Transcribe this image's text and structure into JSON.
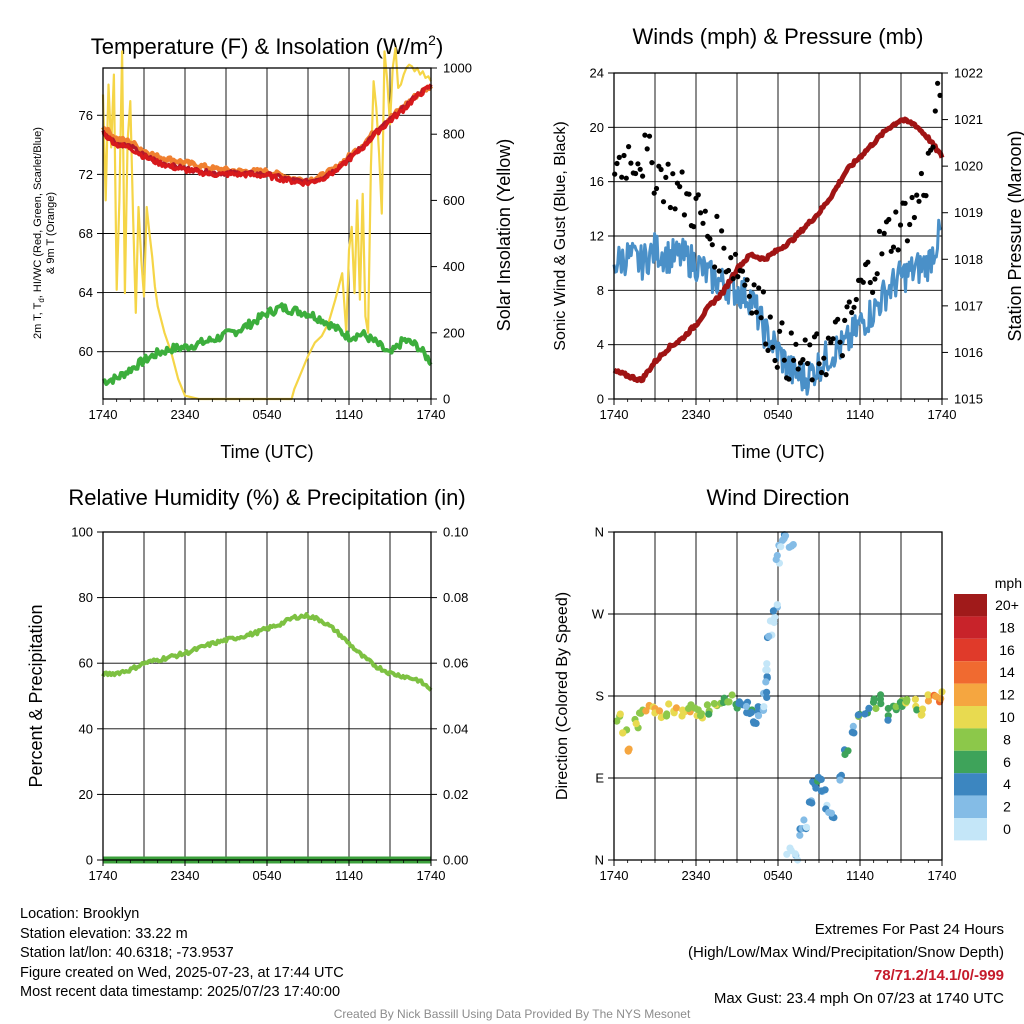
{
  "panels": {
    "temperature": {
      "title": "Temperature (F) & Insolation (W/m",
      "title_sup": "2",
      "title_end": ")",
      "ylabel_left_1": "2m T, T",
      "ylabel_left_sub": "d",
      "ylabel_left_2": ", HI/WC (Red, Green, Scarlet/Blue)",
      "ylabel_left_3": "& 9m T (Orange)",
      "ylabel_right": "Solar Insolation (Yellow)",
      "xlabel": "Time (UTC)"
    },
    "winds": {
      "title": "Winds (mph) & Pressure (mb)",
      "ylabel_left": "Sonic Wind & Gust (Blue, Black)",
      "ylabel_right": "Station Pressure (Maroon)",
      "xlabel": "Time (UTC)"
    },
    "humidity": {
      "title": "Relative Humidity (%) & Precipitation (in)",
      "ylabel_left": "Percent & Precipitation"
    },
    "direction": {
      "title": "Wind Direction",
      "ylabel_left": "Direction (Colored By Speed)",
      "colorbar_unit": "mph",
      "colorbar_labels": [
        "20+",
        "18",
        "16",
        "14",
        "12",
        "10",
        "8",
        "6",
        "4",
        "2",
        "0"
      ]
    }
  },
  "info": {
    "location": "Location: Brooklyn",
    "elevation": "Station elevation: 33.22 m",
    "latlon": "Station lat/lon: 40.6318; -73.9537",
    "created": "Figure created on Wed, 2025-07-23, at 17:44 UTC",
    "recent": "Most recent data timestamp: 2025/07/23 17:40:00",
    "extremes_title": "Extremes For Past 24 Hours",
    "extremes_sub": "(High/Low/Max Wind/Precipitation/Snow Depth)",
    "extremes_values": "78/71.2/14.1/0/-999",
    "max_gust": "Max Gust: 23.4 mph On 07/23 at 1740 UTC",
    "credit": "Created By Nick Bassill Using Data Provided By The NYS Mesonet"
  },
  "colors": {
    "temperature": "#d7191c",
    "dewpoint": "#3cae3c",
    "heat_index": "#b2182b",
    "temp_9m": "#f08030",
    "insolation": "#f5d547",
    "wind": "#4a90c8",
    "gust": "#000000",
    "pressure": "#a01414",
    "humidity": "#7dc142",
    "precip": "#3ca03c",
    "colorbar": [
      "#a01a1a",
      "#c8232a",
      "#e03a2a",
      "#f06a30",
      "#f5a640",
      "#e8da50",
      "#8cc84a",
      "#3ea35a",
      "#3c86c0",
      "#84bce6",
      "#c4e6f8"
    ]
  },
  "chart_data": [
    {
      "type": "line",
      "title": "Temperature (F) & Insolation (W/m2)",
      "xlabel": "Time (UTC)",
      "ylabel": "2m T, Td, HI/WC (Red, Green, Scarlet/Blue) & 9m T (Orange)",
      "y2label": "Solar Insolation (Yellow)",
      "x_ticks": [
        "1740",
        "2340",
        "0540",
        "1140",
        "1740"
      ],
      "x_hours": [
        0,
        6,
        12,
        18,
        24
      ],
      "ylim": [
        56.8,
        79.2
      ],
      "y_ticks": [
        60,
        64,
        68,
        72,
        76
      ],
      "y2lim": [
        0,
        1000
      ],
      "y2_ticks": [
        0,
        200,
        400,
        600,
        800,
        1000
      ],
      "series": [
        {
          "role": "temp_9m",
          "hours": [
            0,
            1,
            2,
            3,
            4,
            5,
            6,
            8,
            10,
            12,
            14,
            15,
            16,
            17,
            18,
            19,
            20,
            21,
            22,
            23,
            24
          ],
          "values": [
            75.2,
            74.4,
            74.2,
            73.6,
            73.2,
            73.0,
            72.8,
            72.4,
            72.2,
            72.2,
            71.7,
            71.6,
            71.9,
            72.4,
            73.2,
            74.0,
            75.0,
            75.8,
            76.6,
            77.4,
            78.0
          ]
        },
        {
          "role": "temperature",
          "hours": [
            0,
            1,
            2,
            3,
            4,
            5,
            6,
            8,
            10,
            12,
            14,
            15,
            16,
            17,
            18,
            19,
            20,
            21,
            22,
            23,
            24
          ],
          "values": [
            74.8,
            74.0,
            73.8,
            73.2,
            72.8,
            72.5,
            72.3,
            72.0,
            72.0,
            71.9,
            71.5,
            71.4,
            71.7,
            72.2,
            73.0,
            73.8,
            74.8,
            75.6,
            76.4,
            77.3,
            78.0
          ]
        },
        {
          "role": "heat_index",
          "hours": [
            0,
            1,
            2,
            3,
            4,
            5,
            6,
            8,
            10,
            12,
            14,
            15,
            16,
            17,
            18,
            19,
            20,
            21,
            22,
            23,
            24
          ],
          "values": [
            74.9,
            74.1,
            73.9,
            73.3,
            72.9,
            72.6,
            72.4,
            72.1,
            72.1,
            72.0,
            71.6,
            71.5,
            71.8,
            72.3,
            73.1,
            73.9,
            74.9,
            75.7,
            76.5,
            77.4,
            78.0
          ]
        },
        {
          "role": "dewpoint",
          "hours": [
            0,
            1,
            2,
            3,
            4,
            5,
            6,
            8,
            10,
            11,
            12,
            13,
            14,
            15,
            16,
            17,
            18,
            19,
            20,
            21,
            22,
            23,
            24
          ],
          "values": [
            58.0,
            58.2,
            58.8,
            59.4,
            59.9,
            60.2,
            60.3,
            60.8,
            61.5,
            62.0,
            62.6,
            63.0,
            62.8,
            62.6,
            62.2,
            61.6,
            61.0,
            61.2,
            60.6,
            59.8,
            60.8,
            60.4,
            59.3
          ]
        },
        {
          "role": "insolation",
          "hours": [
            0,
            0.2,
            0.4,
            0.6,
            0.8,
            1.0,
            1.2,
            1.4,
            1.6,
            1.8,
            2.0,
            2.2,
            2.4,
            2.6,
            2.8,
            3.0,
            3.2,
            3.4,
            3.6,
            3.8,
            4.0,
            4.5,
            5.0,
            5.5,
            6.0,
            7.0,
            9.0,
            11.0,
            13.0,
            13.8,
            14.0,
            14.5,
            15.0,
            15.5,
            16.0,
            16.5,
            17.0,
            17.5,
            17.8,
            18.0,
            18.2,
            18.4,
            18.6,
            18.8,
            19.0,
            19.2,
            19.4,
            19.6,
            19.8,
            20.0,
            20.2,
            20.4,
            20.6,
            20.8,
            21.0,
            21.2,
            21.4,
            21.6,
            21.8,
            22.0,
            22.2,
            22.4,
            22.6,
            22.8,
            23.0,
            23.2,
            23.4,
            23.6,
            23.8,
            24.0
          ],
          "values": [
            920,
            600,
            950,
            760,
            980,
            330,
            600,
            1050,
            320,
            780,
            900,
            550,
            260,
            580,
            420,
            310,
            580,
            500,
            430,
            340,
            280,
            200,
            140,
            60,
            10,
            0,
            0,
            0,
            0,
            0,
            30,
            80,
            130,
            170,
            190,
            230,
            300,
            380,
            200,
            450,
            520,
            320,
            600,
            300,
            620,
            250,
            200,
            700,
            960,
            880,
            740,
            560,
            1050,
            960,
            830,
            1000,
            1060,
            940,
            950,
            980,
            1000,
            1010,
            1005,
            990,
            1000,
            980,
            990,
            970,
            975,
            960
          ]
        }
      ]
    },
    {
      "type": "line",
      "title": "Winds (mph) & Pressure (mb)",
      "xlabel": "Time (UTC)",
      "ylabel": "Sonic Wind & Gust (Blue, Black)",
      "y2label": "Station Pressure (Maroon)",
      "x_ticks": [
        "1740",
        "2340",
        "0540",
        "1140",
        "1740"
      ],
      "x_hours": [
        0,
        6,
        12,
        18,
        24
      ],
      "ylim": [
        0,
        24
      ],
      "y_ticks": [
        0,
        4,
        8,
        12,
        16,
        20,
        24
      ],
      "y2lim": [
        1015,
        1022
      ],
      "y2_ticks": [
        1015,
        1016,
        1017,
        1018,
        1019,
        1020,
        1021,
        1022
      ],
      "series": [
        {
          "role": "wind",
          "hours": [
            0,
            1,
            2,
            3,
            4,
            5,
            6,
            7,
            8,
            9,
            10,
            11,
            12,
            13,
            14,
            15,
            16,
            17,
            18,
            19,
            20,
            21,
            22,
            23,
            24
          ],
          "values": [
            10,
            10.5,
            10,
            11,
            10.5,
            10.5,
            10,
            9,
            8.5,
            8,
            7.5,
            5,
            3.5,
            2,
            1.5,
            2.5,
            3.5,
            4,
            5.5,
            6.5,
            8,
            9,
            9.5,
            10,
            12.5
          ]
        },
        {
          "role": "gust",
          "hours": [
            0,
            1,
            2,
            3,
            4,
            5,
            6,
            7,
            8,
            9,
            10,
            11,
            12,
            13,
            14,
            15,
            16,
            17,
            18,
            19,
            20,
            21,
            22,
            23,
            24
          ],
          "values": [
            17,
            18,
            18,
            17,
            16,
            15,
            14,
            12,
            11,
            10,
            8.5,
            6,
            4,
            3,
            2.5,
            3,
            4,
            5,
            8,
            10,
            12,
            13,
            14,
            17,
            23.4
          ]
        },
        {
          "role": "pressure",
          "hours": [
            0,
            1,
            2,
            3,
            4,
            5,
            6,
            7,
            8,
            9,
            10,
            11,
            12,
            13,
            14,
            15,
            16,
            17,
            18,
            19,
            20,
            21,
            22,
            23,
            24
          ],
          "values": [
            1015.6,
            1015.5,
            1015.4,
            1015.8,
            1016.1,
            1016.3,
            1016.6,
            1017.0,
            1017.3,
            1017.8,
            1018.1,
            1018.0,
            1018.2,
            1018.4,
            1018.7,
            1019.0,
            1019.4,
            1019.9,
            1020.2,
            1020.5,
            1020.8,
            1021.0,
            1020.9,
            1020.6,
            1020.2
          ]
        }
      ]
    },
    {
      "type": "line",
      "title": "Relative Humidity (%) & Precipitation (in)",
      "ylabel": "Percent & Precipitation",
      "x_ticks": [
        "1740",
        "2340",
        "0540",
        "1140",
        "1740"
      ],
      "x_hours": [
        0,
        6,
        12,
        18,
        24
      ],
      "ylim": [
        0,
        100
      ],
      "y_ticks": [
        0,
        20,
        40,
        60,
        80,
        100
      ],
      "y2lim": [
        0,
        0.1
      ],
      "y2_ticks": [
        "0.00",
        "0.02",
        "0.04",
        "0.06",
        "0.08",
        "0.10"
      ],
      "series": [
        {
          "role": "humidity",
          "hours": [
            0,
            1,
            2,
            3,
            4,
            5,
            6,
            7,
            8,
            9,
            10,
            11,
            12,
            13,
            14,
            15,
            16,
            17,
            18,
            19,
            20,
            21,
            22,
            23,
            24
          ],
          "values": [
            56.5,
            57,
            58,
            60,
            61,
            62,
            63,
            64.5,
            66,
            67,
            68,
            69,
            70.5,
            72,
            74,
            74.5,
            73,
            70,
            66,
            62,
            59,
            57,
            56,
            55,
            52
          ]
        },
        {
          "role": "precip",
          "hours": [
            0,
            24
          ],
          "values": [
            0,
            0
          ]
        }
      ]
    },
    {
      "type": "scatter",
      "title": "Wind Direction",
      "ylabel": "Direction (Colored By Speed)",
      "x_ticks": [
        "1740",
        "2340",
        "0540",
        "1140",
        "1740"
      ],
      "x_hours": [
        0,
        6,
        12,
        18,
        24
      ],
      "y_ticks": [
        "N",
        "E",
        "S",
        "W",
        "N"
      ],
      "ylim": [
        0,
        360
      ],
      "colorbar_unit": "mph",
      "points_hours": [
        0.3,
        0.8,
        1.2,
        1.6,
        2.0,
        2.5,
        3.0,
        3.5,
        4.0,
        4.5,
        5.0,
        5.5,
        6.0,
        6.5,
        7.0,
        7.5,
        8.0,
        8.5,
        9.0,
        9.3,
        9.6,
        10.0,
        10.3,
        10.6,
        10.9,
        11.0,
        11.1,
        11.2,
        11.4,
        11.6,
        11.8,
        12.0,
        12.2,
        12.5,
        12.8,
        13.0,
        13.3,
        13.6,
        14.0,
        14.3,
        14.6,
        15.0,
        15.3,
        15.6,
        16.0,
        16.5,
        17.0,
        17.5,
        18.0,
        18.5,
        19.0,
        19.5,
        20.0,
        20.5,
        21.0,
        21.5,
        22.0,
        22.5,
        23.0,
        23.5,
        23.9
      ],
      "points_dir": [
        155,
        140,
        125,
        150,
        160,
        165,
        162,
        160,
        165,
        160,
        165,
        168,
        160,
        162,
        165,
        168,
        175,
        178,
        172,
        170,
        168,
        158,
        150,
        162,
        170,
        185,
        200,
        215,
        240,
        260,
        280,
        330,
        350,
        355,
        10,
        350,
        1,
        30,
        40,
        65,
        80,
        85,
        75,
        58,
        50,
        90,
        115,
        140,
        160,
        165,
        170,
        175,
        160,
        168,
        172,
        178,
        170,
        165,
        180,
        175,
        178
      ],
      "points_speed": [
        9,
        10,
        12,
        9,
        8,
        11,
        12,
        10,
        9,
        12,
        11,
        10,
        10,
        8,
        8,
        9,
        6,
        7,
        6,
        5,
        4,
        4,
        3,
        3,
        2,
        3,
        2,
        1,
        2,
        1,
        2,
        1,
        2,
        2,
        0,
        1,
        1,
        3,
        2,
        3,
        4,
        5,
        3,
        2,
        4,
        4,
        5,
        4,
        6,
        4,
        7,
        5,
        6,
        8,
        7,
        9,
        8,
        10,
        11,
        13,
        12
      ]
    }
  ]
}
